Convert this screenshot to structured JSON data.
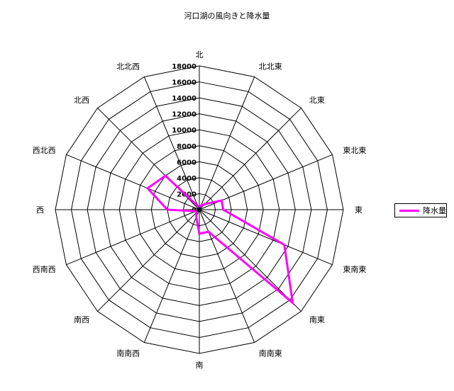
{
  "chart_data": {
    "type": "radar",
    "title": "河口湖の風向きと降水量",
    "categories": [
      "北",
      "北北東",
      "北東",
      "東北東",
      "東",
      "東南東",
      "南東",
      "南南東",
      "南",
      "南南西",
      "南西",
      "西南西",
      "西",
      "西北西",
      "北西",
      "北北西"
    ],
    "rmax": 18000,
    "ticks": [
      0,
      2000,
      4000,
      6000,
      8000,
      10000,
      12000,
      14000,
      16000,
      18000
    ],
    "series": [
      {
        "name": "降水量",
        "color": "#ff00ff",
        "values": [
          500,
          500,
          1000,
          3000,
          3000,
          11500,
          16500,
          3000,
          3000,
          1000,
          500,
          500,
          4000,
          7000,
          6000,
          500
        ]
      }
    ],
    "legend_position": "right",
    "grid": true
  },
  "legend": {
    "label": "降水量",
    "color": "#ff00ff"
  }
}
